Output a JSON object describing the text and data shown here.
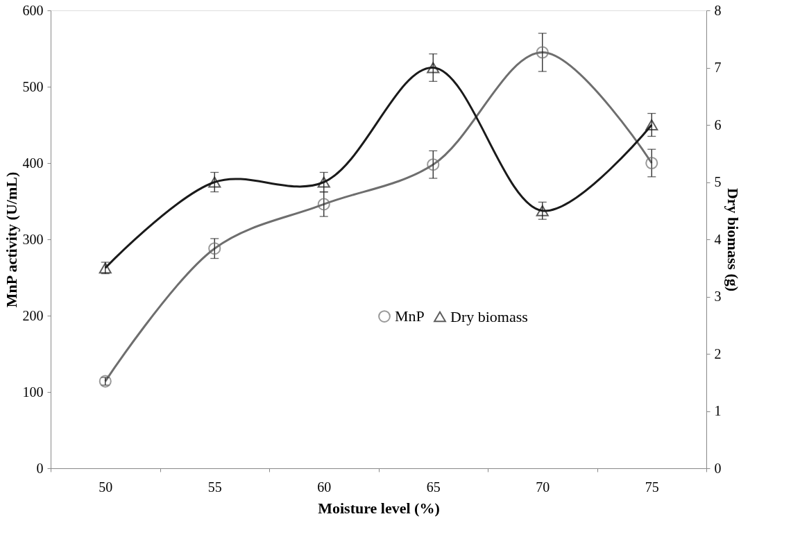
{
  "chart_data": {
    "type": "line",
    "xlabel": "Moisture level (%)",
    "ylabel": "MnP activity (U/mL)",
    "y2label": "Dry biomass (g)",
    "categories": [
      "50",
      "55",
      "60",
      "65",
      "70",
      "75"
    ],
    "series": [
      {
        "name": "MnP",
        "color": "#6e6e6e",
        "marker": "circle",
        "values": [
          114,
          288,
          346,
          398,
          545,
          400
        ],
        "errors": [
          5,
          13,
          16,
          18,
          25,
          18
        ]
      },
      {
        "name": "Dry biomass",
        "color": "#1a1a1a",
        "marker": "triangle",
        "axis": "y2",
        "values": [
          3.5,
          5.0,
          5.0,
          7.0,
          4.5,
          6.0
        ],
        "errors": [
          0.1,
          0.17,
          0.17,
          0.24,
          0.15,
          0.2
        ]
      }
    ],
    "ylim": [
      0,
      600
    ],
    "yticks": [
      0,
      100,
      200,
      300,
      400,
      500,
      600
    ],
    "y2lim": [
      0,
      8
    ],
    "y2ticks": [
      0,
      1,
      2,
      3,
      4,
      5,
      6,
      7,
      8
    ],
    "grid": false,
    "legend": "center right",
    "line_style": "solid"
  }
}
